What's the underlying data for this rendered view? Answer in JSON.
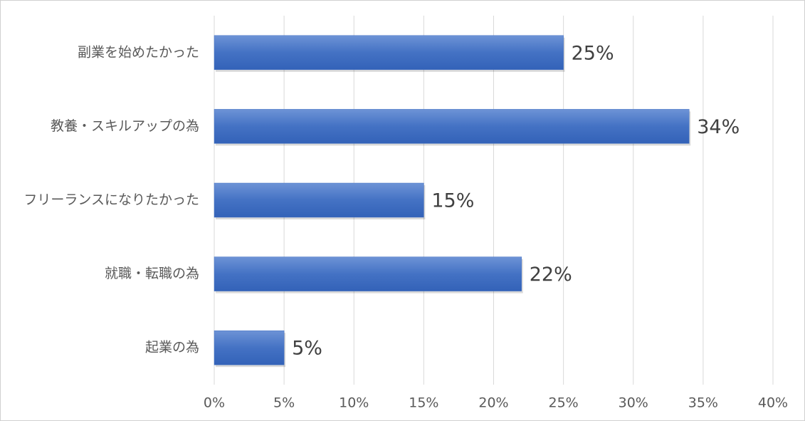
{
  "chart_data": {
    "type": "bar",
    "orientation": "horizontal",
    "categories": [
      "副業を始めたかった",
      "教養・スキルアップの為",
      "フリーランスになりたかった",
      "就職・転職の為",
      "起業の為"
    ],
    "values": [
      25,
      34,
      15,
      22,
      5
    ],
    "value_labels": [
      "25%",
      "34%",
      "15%",
      "22%",
      "5%"
    ],
    "color": "#4472c4",
    "xlim": [
      0,
      40
    ],
    "xticks": [
      {
        "value": 0,
        "label": "0%"
      },
      {
        "value": 5,
        "label": "5%"
      },
      {
        "value": 10,
        "label": "10%"
      },
      {
        "value": 15,
        "label": "15%"
      },
      {
        "value": 20,
        "label": "20%"
      },
      {
        "value": 25,
        "label": "25%"
      },
      {
        "value": 30,
        "label": "30%"
      },
      {
        "value": 35,
        "label": "35%"
      },
      {
        "value": 40,
        "label": "40%"
      }
    ],
    "grid": true
  }
}
